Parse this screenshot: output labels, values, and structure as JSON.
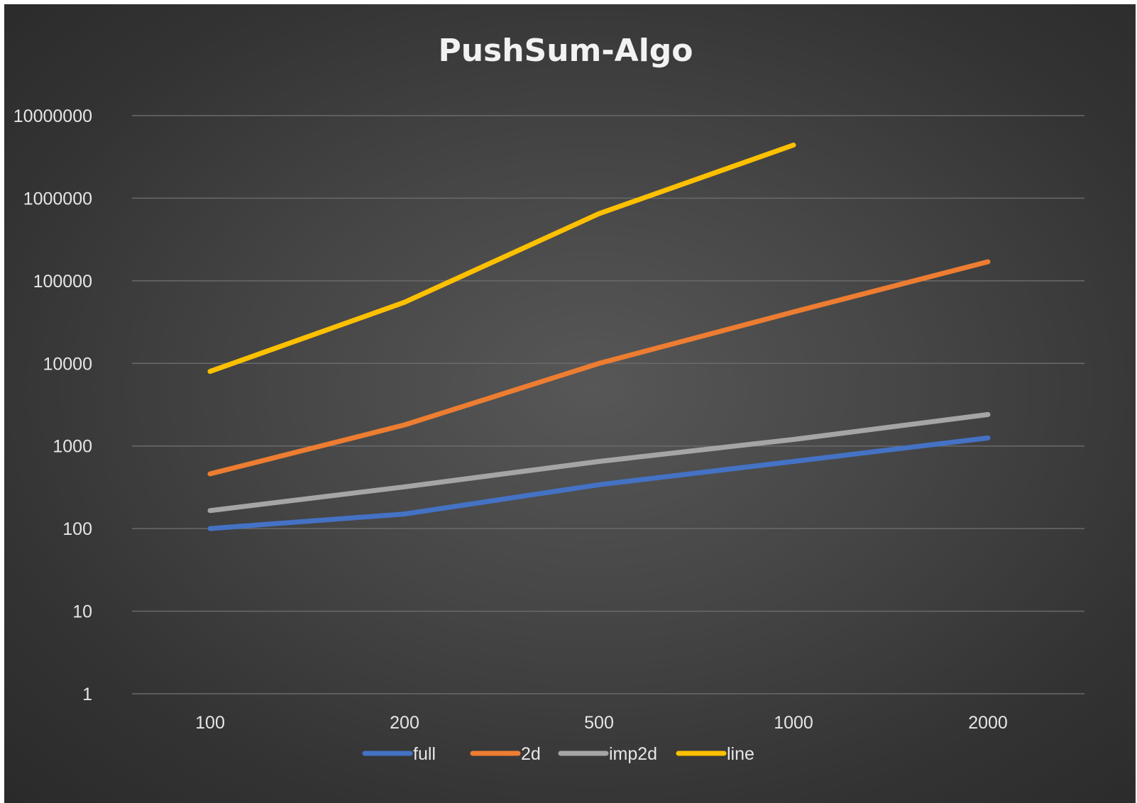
{
  "chart_data": {
    "type": "line",
    "title": "PushSum-Algo",
    "xlabel": "",
    "ylabel": "",
    "categories": [
      "100",
      "200",
      "500",
      "1000",
      "2000"
    ],
    "y_scale": "log",
    "ylim": [
      1,
      10000000
    ],
    "y_ticks": [
      "1",
      "10",
      "100",
      "1000",
      "10000",
      "100000",
      "1000000",
      "10000000"
    ],
    "grid": true,
    "legend_position": "bottom",
    "series": [
      {
        "name": "full",
        "color": "#4472C4",
        "values": [
          100,
          150,
          340,
          650,
          1250
        ]
      },
      {
        "name": "2d",
        "color": "#ED7D31",
        "values": [
          460,
          1800,
          10000,
          42000,
          170000
        ]
      },
      {
        "name": "imp2d",
        "color": "#A5A5A5",
        "values": [
          165,
          320,
          650,
          1200,
          2400
        ]
      },
      {
        "name": "line",
        "color": "#FFC000",
        "values": [
          8000,
          55000,
          650000,
          4400000,
          null
        ]
      }
    ]
  }
}
